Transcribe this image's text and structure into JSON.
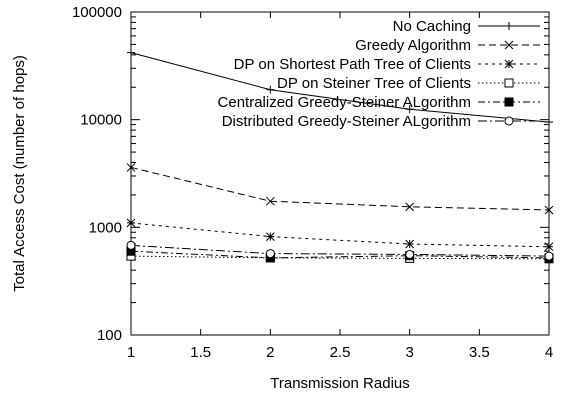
{
  "chart_data": {
    "type": "line",
    "title": "",
    "xlabel": "Transmission Radius",
    "ylabel": "Total Access Cost (number of hops)",
    "xlim": [
      1,
      4
    ],
    "ylim": [
      100,
      100000
    ],
    "yscale": "log",
    "x_ticks": [
      1,
      1.5,
      2,
      2.5,
      3,
      3.5,
      4
    ],
    "x_tick_labels": [
      "1",
      "1.5",
      "2",
      "2.5",
      "3",
      "3.5",
      "4"
    ],
    "y_ticks": [
      100,
      1000,
      10000,
      100000
    ],
    "y_tick_labels": [
      "100",
      "1000",
      "10000",
      "100000"
    ],
    "grid": false,
    "legend_position": "top-right",
    "x": [
      1,
      2,
      3,
      4
    ],
    "series": [
      {
        "name": "No Caching",
        "values": [
          42000,
          19000,
          12500,
          9500
        ],
        "dash": "solid",
        "marker": "plus",
        "color": "#000000"
      },
      {
        "name": "Greedy Algorithm",
        "values": [
          3600,
          1750,
          1550,
          1450
        ],
        "dash": "dashed",
        "marker": "cross",
        "color": "#000000"
      },
      {
        "name": "DP on Shortest Path Tree of Clients",
        "values": [
          1100,
          820,
          700,
          660
        ],
        "dash": "dotted-short",
        "marker": "star",
        "color": "#000000"
      },
      {
        "name": "DP on Steiner Tree of Clients",
        "values": [
          540,
          520,
          515,
          510
        ],
        "dash": "dotted",
        "marker": "open-square",
        "color": "#000000"
      },
      {
        "name": "Centralized  Greedy-Steiner ALgorithm",
        "values": [
          600,
          520,
          545,
          520
        ],
        "dash": "dash-dot",
        "marker": "filled-square",
        "color": "#000000"
      },
      {
        "name": "Distributed Greedy-Steiner ALgorithm",
        "values": [
          680,
          570,
          560,
          540
        ],
        "dash": "long-dash-dot",
        "marker": "open-circle",
        "color": "#000000"
      }
    ]
  }
}
